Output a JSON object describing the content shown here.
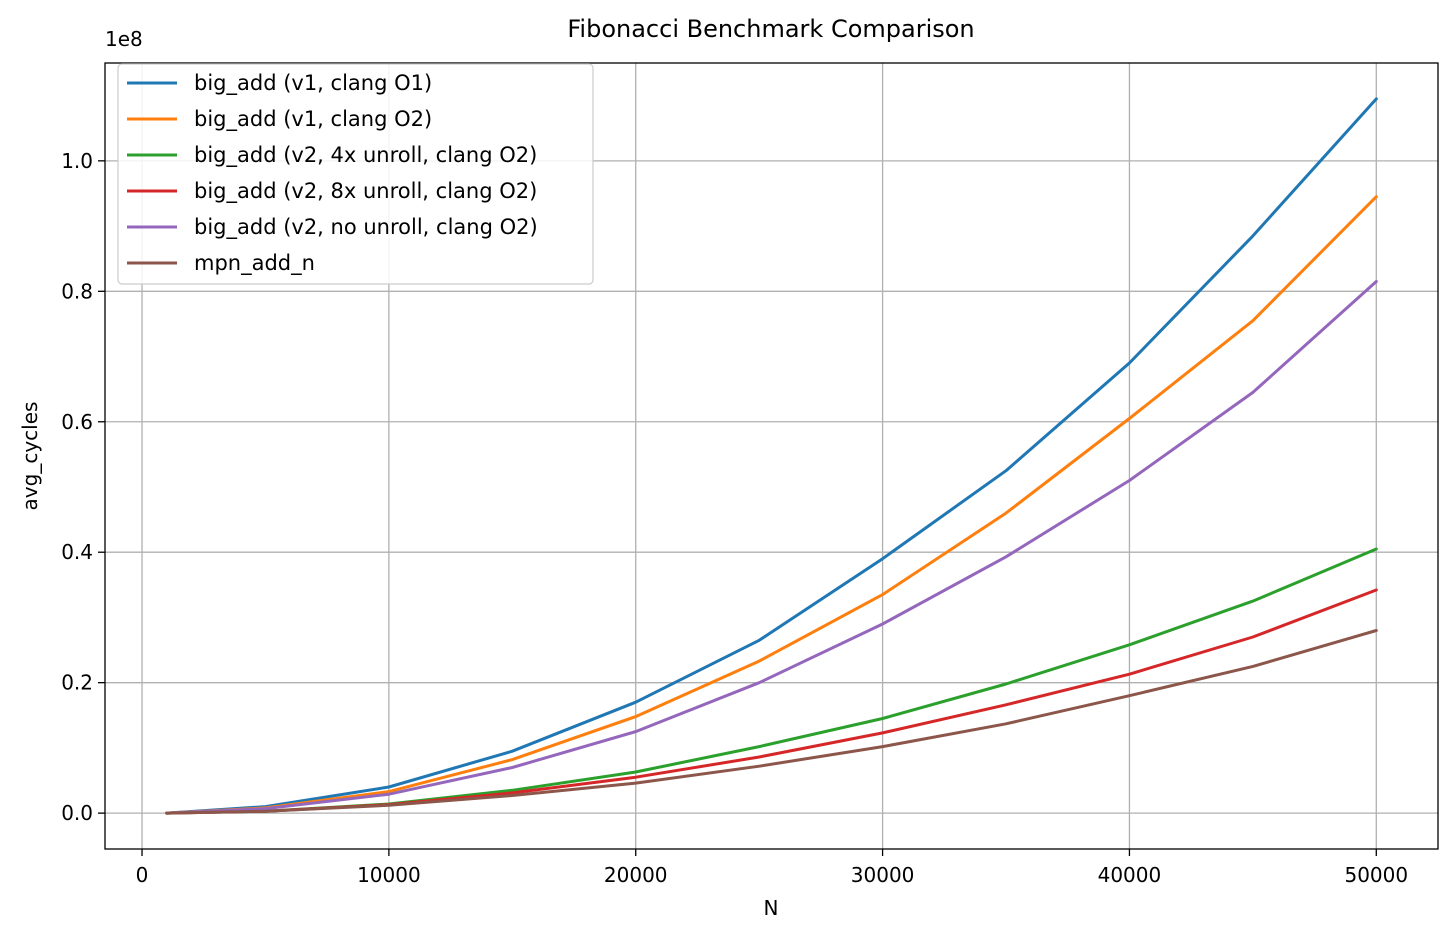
{
  "chart_data": {
    "type": "line",
    "title": "Fibonacci Benchmark Comparison",
    "xlabel": "N",
    "ylabel": "avg_cycles",
    "y_offset_label": "1e8",
    "xlim": [
      -1500,
      52500
    ],
    "ylim": [
      -0.055,
      1.15
    ],
    "x_ticks": [
      0,
      10000,
      20000,
      30000,
      40000,
      50000
    ],
    "x_tick_labels": [
      "0",
      "10000",
      "20000",
      "30000",
      "40000",
      "50000"
    ],
    "y_ticks": [
      0.0,
      0.2,
      0.4,
      0.6,
      0.8,
      1.0
    ],
    "y_tick_labels": [
      "0.0",
      "0.2",
      "0.4",
      "0.6",
      "0.8",
      "1.0"
    ],
    "grid": true,
    "legend_position": "upper-left",
    "x": [
      1000,
      5000,
      10000,
      15000,
      20000,
      25000,
      30000,
      35000,
      40000,
      45000,
      50000
    ],
    "series": [
      {
        "name": "big_add (v1, clang O1)",
        "color": "#1f77b4",
        "values": [
          0.0,
          0.01,
          0.04,
          0.095,
          0.17,
          0.265,
          0.39,
          0.525,
          0.69,
          0.885,
          1.095
        ]
      },
      {
        "name": "big_add (v1, clang O2)",
        "color": "#ff7f0e",
        "values": [
          0.0,
          0.008,
          0.033,
          0.082,
          0.148,
          0.233,
          0.335,
          0.46,
          0.605,
          0.755,
          0.945
        ]
      },
      {
        "name": "big_add (v2, 4x unroll, clang O2)",
        "color": "#2ca02c",
        "values": [
          0.0,
          0.003,
          0.014,
          0.035,
          0.063,
          0.102,
          0.145,
          0.198,
          0.258,
          0.325,
          0.405
        ]
      },
      {
        "name": "big_add (v2, 8x unroll, clang O2)",
        "color": "#d62728",
        "values": [
          0.0,
          0.003,
          0.013,
          0.031,
          0.055,
          0.086,
          0.123,
          0.166,
          0.213,
          0.27,
          0.342
        ]
      },
      {
        "name": "big_add (v2, no unroll, clang O2)",
        "color": "#9467bd",
        "values": [
          0.0,
          0.007,
          0.029,
          0.07,
          0.125,
          0.2,
          0.29,
          0.393,
          0.51,
          0.645,
          0.815
        ]
      },
      {
        "name": "mpn_add_n",
        "color": "#8c564b",
        "values": [
          0.0,
          0.003,
          0.012,
          0.027,
          0.046,
          0.072,
          0.102,
          0.137,
          0.18,
          0.225,
          0.28
        ]
      }
    ]
  }
}
